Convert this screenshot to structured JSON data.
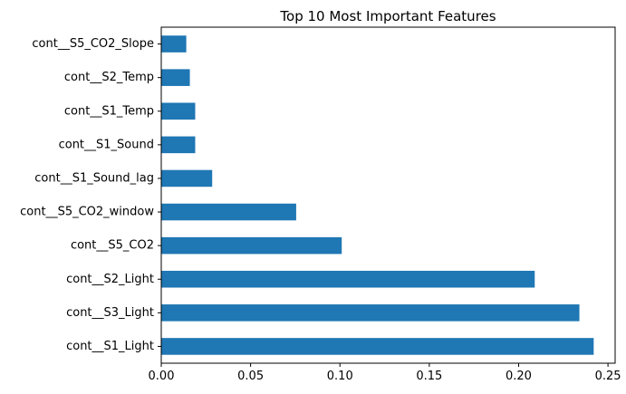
{
  "chart_data": {
    "type": "bar",
    "orientation": "horizontal",
    "title": "Top 10 Most Important Features",
    "xlabel": "",
    "ylabel": "",
    "categories": [
      "cont__S1_Light",
      "cont__S3_Light",
      "cont__S2_Light",
      "cont__S5_CO2",
      "cont__S5_CO2_window",
      "cont__S1_Sound_lag",
      "cont__S1_Sound",
      "cont__S1_Temp",
      "cont__S2_Temp",
      "cont__S5_CO2_Slope"
    ],
    "values": [
      0.242,
      0.234,
      0.209,
      0.101,
      0.0755,
      0.0285,
      0.019,
      0.019,
      0.016,
      0.014
    ],
    "xlim": [
      0,
      0.254
    ],
    "xticks": [
      0.0,
      0.05,
      0.1,
      0.15,
      0.2,
      0.25
    ],
    "xtick_labels": [
      "0.00",
      "0.05",
      "0.10",
      "0.15",
      "0.20",
      "0.25"
    ],
    "bar_color": "#1f77b4",
    "grid": false,
    "legend": "none"
  }
}
